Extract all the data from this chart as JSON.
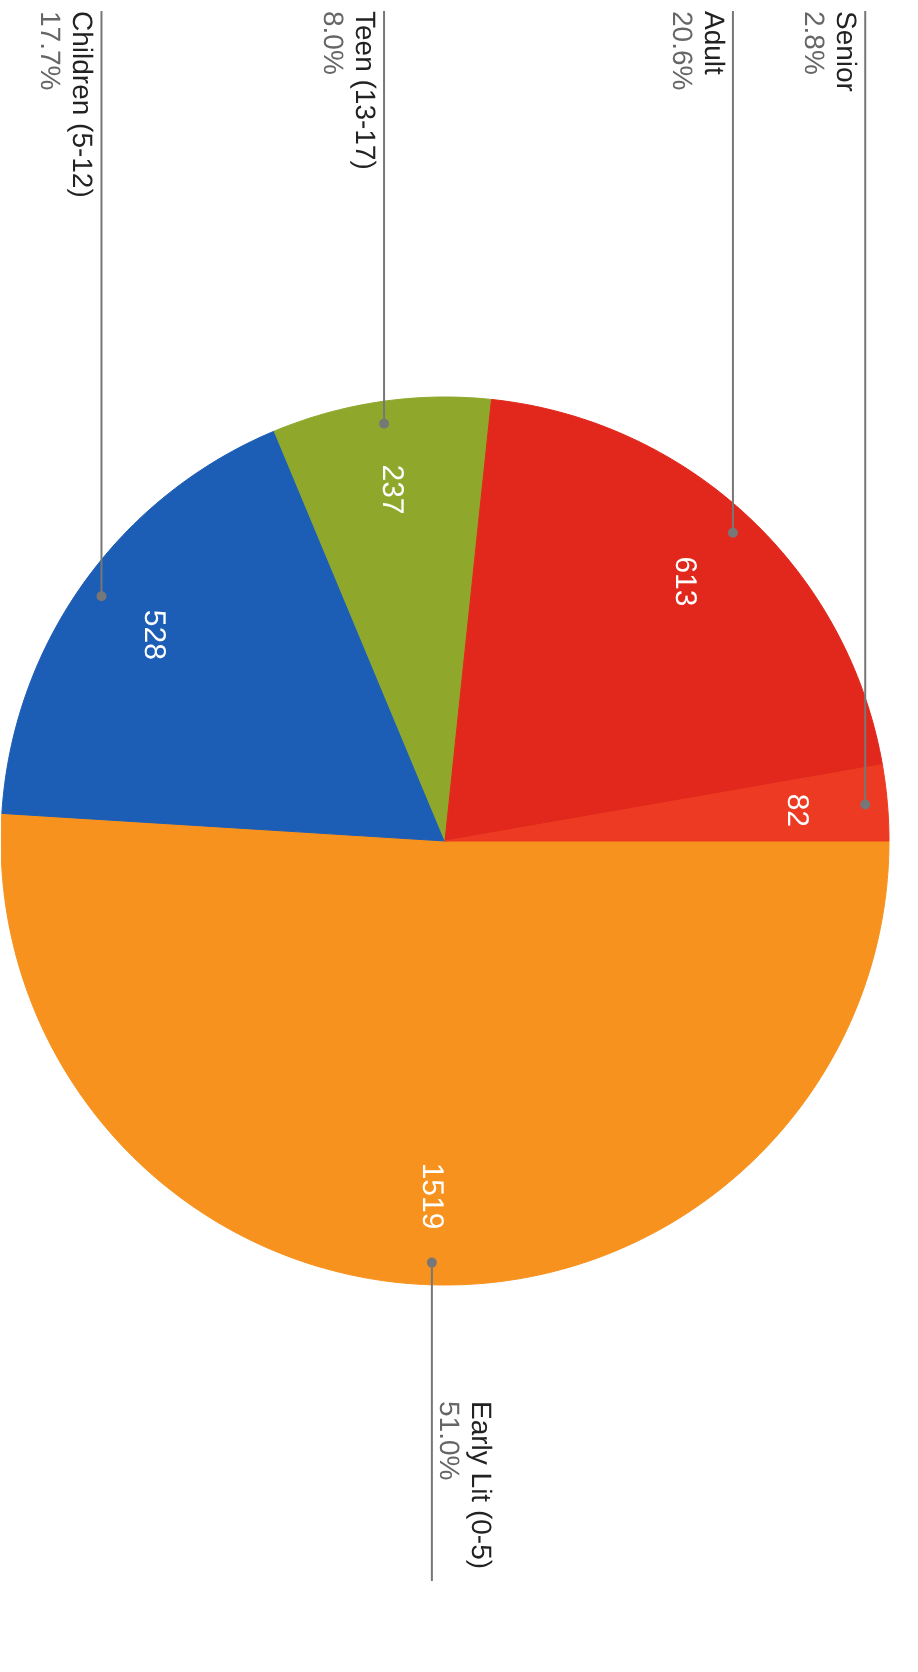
{
  "chart_data": {
    "type": "pie",
    "categories": [
      "Early Lit (0-5)",
      "Children (5-12)",
      "Teen (13-17)",
      "Adult",
      "Senior"
    ],
    "values": [
      1519,
      528,
      237,
      613,
      82
    ],
    "colors": [
      "#f7921e",
      "#1c5db5",
      "#8fa82c",
      "#e2281c",
      "#ec3b22"
    ],
    "data_labels": true,
    "annotations": [
      "51.0%",
      "17.7%",
      "8.0%",
      "20.6%",
      "2.8%"
    ]
  }
}
